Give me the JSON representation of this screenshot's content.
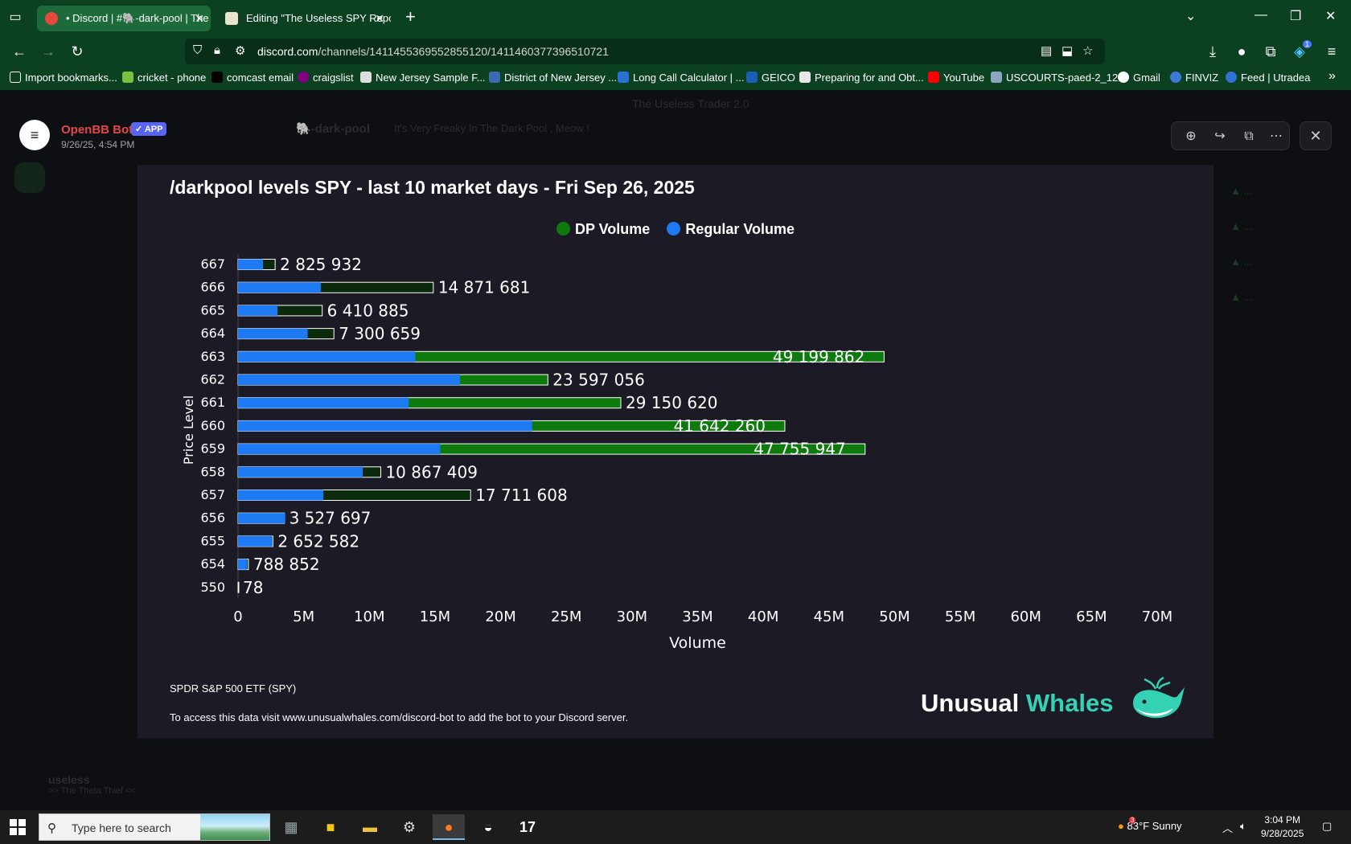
{
  "browser": {
    "tabs": [
      {
        "label": "• Discord | #🐘-dark-pool | The",
        "active": true
      },
      {
        "label": "Editing \"The Useless SPY Report",
        "active": false
      }
    ],
    "url_host": "discord.com",
    "url_path": "/channels/1411455369552855120/1411460377396510721",
    "bookmarks": [
      "Import bookmarks...",
      "cricket - phone",
      "comcast email",
      "craigslist",
      "New Jersey Sample F...",
      "District of New Jersey ...",
      "Long Call Calculator | ...",
      "GEICO",
      "Preparing for and Obt...",
      "YouTube",
      "USCOURTS-paed-2_12...",
      "Gmail",
      "FINVIZ",
      "Feed | Utradea"
    ],
    "download_badge": "1"
  },
  "discord_bg": {
    "server_title": "The Useless Trader 2.0",
    "channel": "🐘-dark-pool",
    "channel_topic": "It's Very Freaky In The Dark Pool , Meow !",
    "user_name": "useless",
    "user_status": ">> The Theta Thief <<"
  },
  "lightbox": {
    "author": "OpenBB Bot",
    "app_badge": "✓ APP",
    "timestamp": "9/26/25, 4:54 PM"
  },
  "image": {
    "title": "/darkpool levels SPY - last 10 market days - Fri Sep 26, 2025",
    "footer_ticker": "SPDR S&P 500 ETF (SPY)",
    "footer_note": "To access this data visit www.unusualwhales.com/discord-bot to add the bot to your Discord server.",
    "brand_word1": "Unusual",
    "brand_word2": "Whales"
  },
  "chart_data": {
    "type": "bar",
    "orientation": "horizontal",
    "stacked": true,
    "title": "/darkpool levels SPY - last 10 market days - Fri Sep 26, 2025",
    "xlabel": "Volume",
    "ylabel": "Price Level",
    "xlim": [
      0,
      70000000
    ],
    "x_ticks": [
      "0",
      "5M",
      "10M",
      "15M",
      "20M",
      "25M",
      "30M",
      "35M",
      "40M",
      "45M",
      "50M",
      "55M",
      "60M",
      "65M",
      "70M"
    ],
    "legend_position": "top-center",
    "categories": [
      "667",
      "666",
      "665",
      "664",
      "663",
      "662",
      "661",
      "660",
      "659",
      "658",
      "657",
      "656",
      "655",
      "654",
      "550"
    ],
    "series": [
      {
        "name": "Regular Volume",
        "color": "#1d7af3",
        "values": [
          1900000,
          6300000,
          3000000,
          5300000,
          13500000,
          16900000,
          13000000,
          22400000,
          15400000,
          9500000,
          6500000,
          3600000,
          2600000,
          700000,
          0
        ]
      },
      {
        "name": "DP Volume",
        "color": "#0e7a0d",
        "values": [
          925932,
          8571681,
          3410885,
          2000659,
          35699862,
          6697056,
          16150620,
          19242260,
          32355947,
          1367409,
          11211608,
          -72303,
          52582,
          88852,
          78
        ]
      }
    ],
    "totals": [
      2825932,
      14871681,
      6410885,
      7300659,
      49199862,
      23597056,
      29150620,
      41642260,
      47755947,
      10867409,
      17711608,
      3527697,
      2652582,
      788852,
      78
    ],
    "total_labels": [
      "2 825 932",
      "14 871 681",
      "6 410 885",
      "7 300 659",
      "49 199 862",
      "23 597 056",
      "29 150 620",
      "41 642 260",
      "47 755 947",
      "10 867 409",
      "17 711 608",
      "3 527 697",
      "2 652 582",
      "788 852",
      "78"
    ]
  },
  "taskbar": {
    "search_placeholder": "Type here to search",
    "weather": "83°F  Sunny",
    "weather_badge": "3",
    "time": "3:04 PM",
    "date": "9/28/2025"
  },
  "colors": {
    "dp": "#0e7a0d",
    "regular": "#1d7af3",
    "chrome": "#0b4020",
    "card": "#1b1a25"
  }
}
